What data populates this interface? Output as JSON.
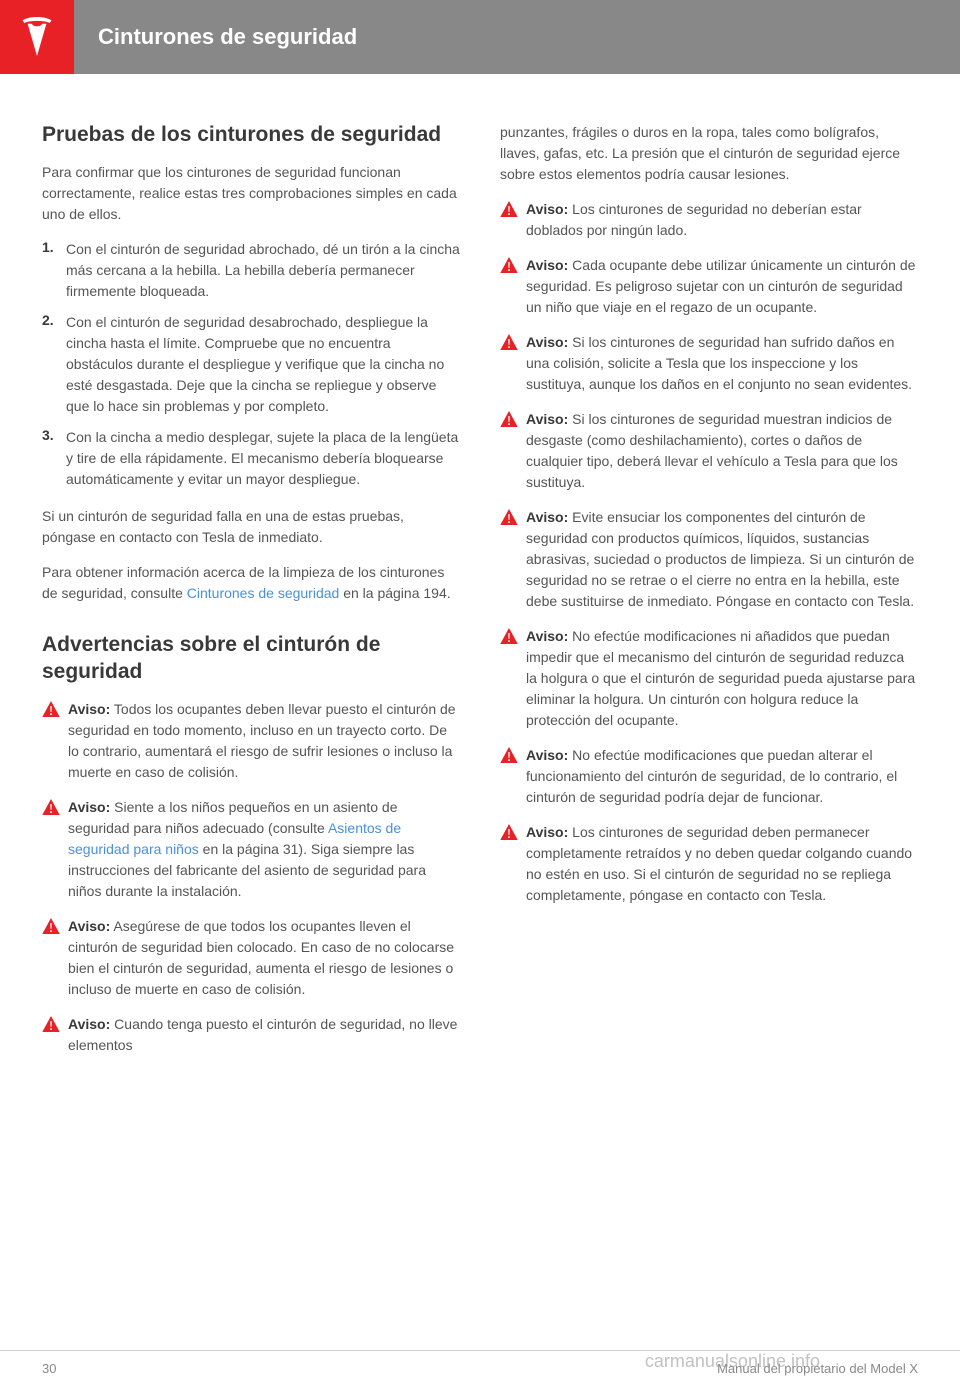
{
  "header": {
    "title": "Cinturones de seguridad"
  },
  "section1": {
    "heading": "Pruebas de los cinturones de seguridad",
    "intro": "Para confirmar que los cinturones de seguridad funcionan correctamente, realice estas tres comprobaciones simples en cada uno de ellos.",
    "items": [
      {
        "num": "1.",
        "text": "Con el cinturón de seguridad abrochado, dé un tirón a la cincha más cercana a la hebilla. La hebilla debería permanecer firmemente bloqueada."
      },
      {
        "num": "2.",
        "text": "Con el cinturón de seguridad desabrochado, despliegue la cincha hasta el límite. Compruebe que no encuentra obstáculos durante el despliegue y verifique que la cincha no esté desgastada. Deje que la cincha se repliegue y observe que lo hace sin problemas y por completo."
      },
      {
        "num": "3.",
        "text": "Con la cincha a medio desplegar, sujete la placa de la lengüeta y tire de ella rápidamente. El mecanismo debería bloquearse automáticamente y evitar un mayor despliegue."
      }
    ],
    "para1": "Si un cinturón de seguridad falla en una de estas pruebas, póngase en contacto con Tesla de inmediato.",
    "para2_before": "Para obtener información acerca de la limpieza de los cinturones de seguridad, consulte ",
    "para2_link": "Cinturones de seguridad",
    "para2_after": " en la página 194."
  },
  "section2": {
    "heading": "Advertencias sobre el cinturón de seguridad"
  },
  "warnings_left": [
    {
      "label": "Aviso:",
      "text": " Todos los ocupantes deben llevar puesto el cinturón de seguridad en todo momento, incluso en un trayecto corto. De lo contrario, aumentará el riesgo de sufrir lesiones o incluso la muerte en caso de colisión."
    },
    {
      "label": "Aviso:",
      "text_before": " Siente a los niños pequeños en un asiento de seguridad para niños adecuado (consulte ",
      "link": "Asientos de seguridad para niños",
      "text_after": " en la página 31). Siga siempre las instrucciones del fabricante del asiento de seguridad para niños durante la instalación."
    },
    {
      "label": "Aviso:",
      "text": " Asegúrese de que todos los ocupantes lleven el cinturón de seguridad bien colocado. En caso de no colocarse bien el cinturón de seguridad, aumenta el riesgo de lesiones o incluso de muerte en caso de colisión."
    },
    {
      "label": "Aviso:",
      "text": " Cuando tenga puesto el cinturón de seguridad, no lleve elementos"
    }
  ],
  "right_intro": "punzantes, frágiles o duros en la ropa, tales como bolígrafos, llaves, gafas, etc. La presión que el cinturón de seguridad ejerce sobre estos elementos podría causar lesiones.",
  "warnings_right": [
    {
      "label": "Aviso:",
      "text": " Los cinturones de seguridad no deberían estar doblados por ningún lado."
    },
    {
      "label": "Aviso:",
      "text": " Cada ocupante debe utilizar únicamente un cinturón de seguridad. Es peligroso sujetar con un cinturón de seguridad un niño que viaje en el regazo de un ocupante."
    },
    {
      "label": "Aviso:",
      "text": " Si los cinturones de seguridad han sufrido daños en una colisión, solicite a Tesla que los inspeccione y los sustituya, aunque los daños en el conjunto no sean evidentes."
    },
    {
      "label": "Aviso:",
      "text": " Si los cinturones de seguridad muestran indicios de desgaste (como deshilachamiento), cortes o daños de cualquier tipo, deberá llevar el vehículo a Tesla para que los sustituya."
    },
    {
      "label": "Aviso:",
      "text": " Evite ensuciar los componentes del cinturón de seguridad con productos químicos, líquidos, sustancias abrasivas, suciedad o productos de limpieza. Si un cinturón de seguridad no se retrae o el cierre no entra en la hebilla, este debe sustituirse de inmediato. Póngase en contacto con Tesla."
    },
    {
      "label": "Aviso:",
      "text": " No efectúe modificaciones ni añadidos que puedan impedir que el mecanismo del cinturón de seguridad reduzca la holgura o que el cinturón de seguridad pueda ajustarse para eliminar la holgura. Un cinturón con holgura reduce la protección del ocupante."
    },
    {
      "label": "Aviso:",
      "text": " No efectúe modificaciones que puedan alterar el funcionamiento del cinturón de seguridad, de lo contrario, el cinturón de seguridad podría dejar de funcionar."
    },
    {
      "label": "Aviso:",
      "text": " Los cinturones de seguridad deben permanecer completamente retraídos y no deben quedar colgando cuando no estén en uso. Si el cinturón de seguridad no se repliega completamente, póngase en contacto con Tesla."
    }
  ],
  "footer": {
    "page": "30",
    "manual": "Manual del propietario del Model X"
  },
  "watermark": "carmanualsonline.info"
}
